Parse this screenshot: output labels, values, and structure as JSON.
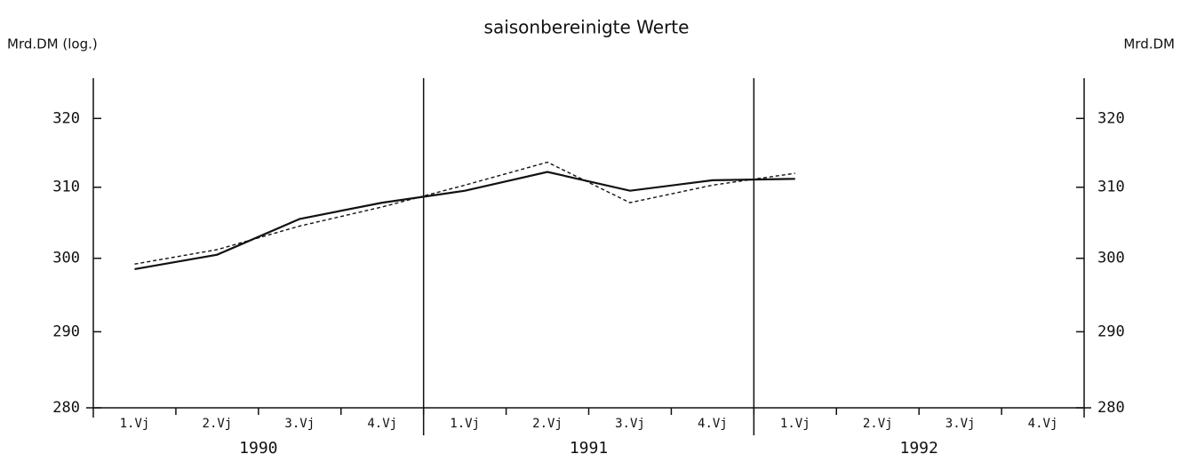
{
  "chart_data": {
    "type": "line",
    "title": "saisonbereinigte Werte",
    "y_label": "Mrd.DM (log.)",
    "y2_label": "Mrd.DM",
    "categories": [
      "1.Vj",
      "2.Vj",
      "3.Vj",
      "4.Vj",
      "1.Vj",
      "2.Vj",
      "3.Vj",
      "4.Vj",
      "1.Vj",
      "2.Vj",
      "3.Vj",
      "4.Vj"
    ],
    "groups": [
      "1990",
      "1991",
      "1992"
    ],
    "log_scale": true,
    "ylim": [
      280,
      326
    ],
    "yticks": [
      280,
      290,
      300,
      310,
      320
    ],
    "y2lim": [
      280,
      326
    ],
    "y2ticks": [
      280,
      290,
      300,
      310,
      320
    ],
    "series": [
      {
        "color": "#111111",
        "style": "solid",
        "values": [
          298.5,
          300.5,
          305.5,
          307.8,
          309.5,
          312.2,
          309.5,
          311,
          311.2,
          null,
          null,
          null
        ]
      },
      {
        "color": "#111111",
        "style": "dotted",
        "values": [
          299.2,
          301.2,
          304.5,
          307.2,
          310.3,
          313.6,
          307.8,
          310.3,
          312,
          null,
          null,
          null
        ]
      }
    ]
  }
}
